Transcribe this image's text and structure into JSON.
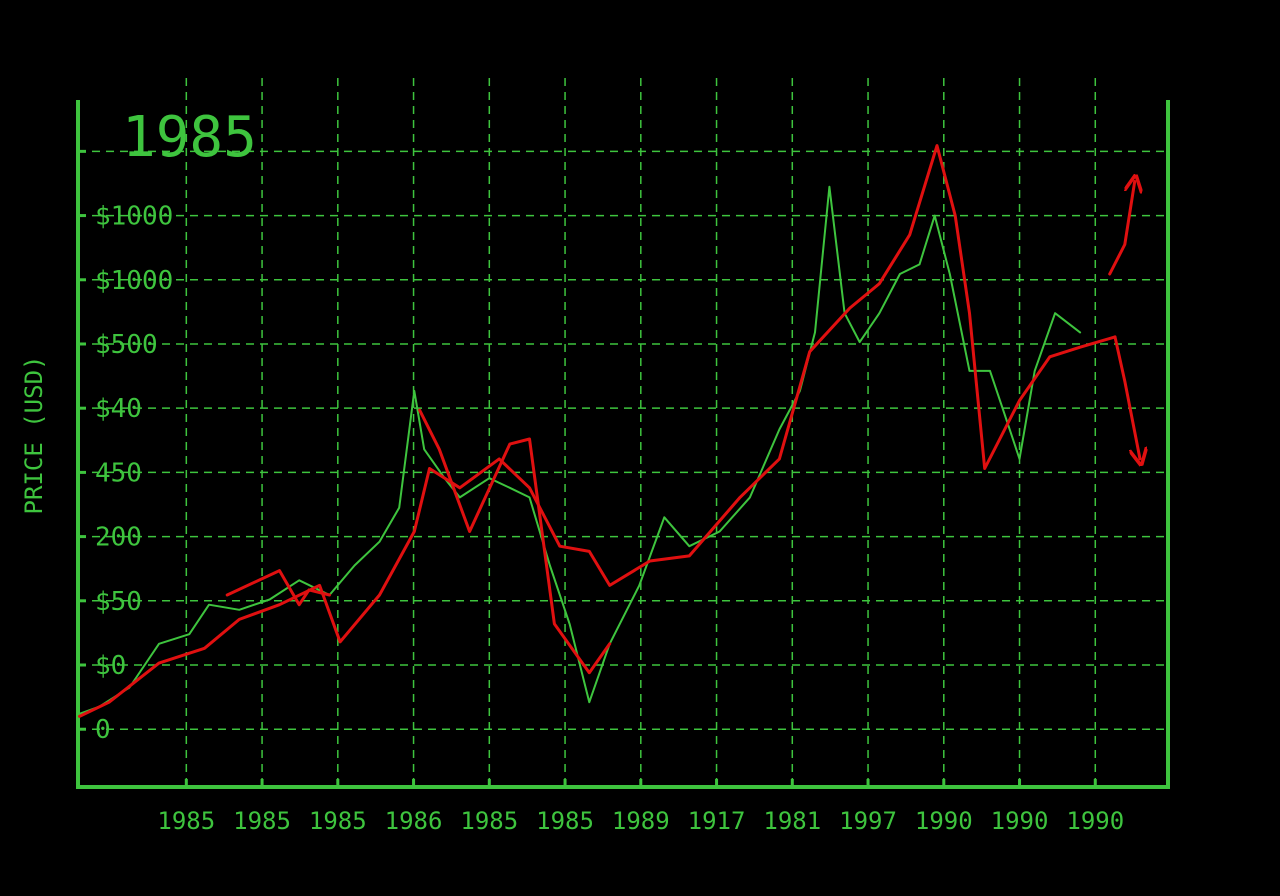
{
  "chart_data": {
    "type": "line",
    "title": "1985",
    "y_label": "PRICE (USD)",
    "xlim": [
      -1.43,
      12.96
    ],
    "xticks": [
      {
        "value": 0,
        "label": "1985"
      },
      {
        "value": 1,
        "label": "1985"
      },
      {
        "value": 2,
        "label": "1985"
      },
      {
        "value": 3,
        "label": "1986"
      },
      {
        "value": 4,
        "label": "1985"
      },
      {
        "value": 5,
        "label": "1985"
      },
      {
        "value": 6,
        "label": "1989"
      },
      {
        "value": 7,
        "label": "1917"
      },
      {
        "value": 8,
        "label": "1981"
      },
      {
        "value": 9,
        "label": "1997"
      },
      {
        "value": 10,
        "label": "1990"
      },
      {
        "value": 11,
        "label": "1990"
      },
      {
        "value": 12,
        "label": "1990"
      }
    ],
    "ylim": [
      -0.9,
      9.8
    ],
    "yticks": [
      0,
      {
        "value": 1,
        "label": "$0"
      },
      {
        "value": 2,
        "label": "$50"
      },
      {
        "value": 3,
        "label": "200"
      },
      {
        "value": 4,
        "label": "450"
      },
      {
        "value": 5,
        "label": "$40"
      },
      {
        "value": 6,
        "label": "$500"
      },
      {
        "value": 7,
        "label": "$1000"
      },
      {
        "value": 8,
        "label": "$1000"
      },
      {
        "value": 9,
        "label": null
      }
    ],
    "grid": true,
    "series": [
      {
        "color": "#3ec43e",
        "width": 2,
        "x": [
          -1.41,
          -1.15,
          -0.75,
          -0.36,
          0.04,
          0.3,
          0.7,
          1.1,
          1.49,
          1.89,
          2.22,
          2.55,
          2.81,
          3.01,
          3.14,
          3.41,
          3.61,
          4.0,
          4.27,
          4.53,
          4.8,
          5.06,
          5.32,
          5.59,
          5.98,
          6.31,
          6.64,
          7.04,
          7.44,
          7.83,
          8.1,
          8.3,
          8.49,
          8.69,
          8.89,
          9.15,
          9.42,
          9.68,
          9.88,
          10.08,
          10.34,
          10.61,
          10.87,
          11.0,
          11.2,
          11.47,
          11.8
        ],
        "values": [
          0.24,
          0.35,
          0.65,
          1.33,
          1.48,
          1.94,
          1.86,
          2.02,
          2.32,
          2.09,
          2.55,
          2.92,
          3.45,
          5.27,
          4.36,
          3.91,
          3.61,
          3.91,
          3.76,
          3.61,
          2.55,
          1.64,
          0.42,
          1.33,
          2.24,
          3.3,
          2.85,
          3.08,
          3.61,
          4.67,
          5.27,
          6.18,
          8.45,
          6.48,
          6.03,
          6.48,
          7.09,
          7.24,
          8.0,
          7.09,
          5.58,
          5.58,
          4.67,
          4.21,
          5.58,
          6.48,
          6.18
        ]
      },
      {
        "color": "#e01010",
        "width": 3,
        "x": [
          -1.41,
          -1.02,
          -0.36,
          0.24,
          0.7,
          1.23,
          1.76,
          2.03,
          2.55,
          3.01,
          3.21,
          3.61,
          4.13,
          4.53,
          4.93,
          5.32,
          5.59,
          6.12,
          6.64,
          7.31,
          7.83,
          8.23,
          8.76,
          9.15,
          9.55,
          9.91,
          10.15,
          10.34,
          10.54,
          11.0,
          11.4,
          11.8,
          12.26
        ],
        "values": [
          0.2,
          0.42,
          1.03,
          1.26,
          1.71,
          1.94,
          2.24,
          1.36,
          2.09,
          3.08,
          4.06,
          3.76,
          4.21,
          3.76,
          2.85,
          2.77,
          2.24,
          2.62,
          2.7,
          3.61,
          4.21,
          5.88,
          6.56,
          6.94,
          7.7,
          9.09,
          8.0,
          6.48,
          4.06,
          5.12,
          5.8,
          5.95,
          6.11
        ]
      },
      {
        "color": "#e01010",
        "width": 3,
        "x": [
          0.54,
          1.23,
          1.49,
          1.62,
          1.89,
          null,
          3.08,
          3.34,
          3.74,
          4.27,
          4.53,
          4.86,
          5.32,
          5.59
        ],
        "values": [
          2.09,
          2.47,
          1.94,
          2.17,
          2.09,
          null,
          4.97,
          4.36,
          3.08,
          4.44,
          4.52,
          1.64,
          0.88,
          1.33
        ]
      },
      {
        "color": "#e01010",
        "width": 3,
        "arrow": true,
        "x": [
          12.19,
          12.39,
          12.52
        ],
        "values": [
          7.09,
          7.55,
          8.53
        ]
      },
      {
        "color": "#e01010",
        "width": 3,
        "arrow": true,
        "x": [
          12.26,
          12.39,
          12.59
        ],
        "values": [
          6.11,
          5.42,
          4.21
        ]
      }
    ]
  }
}
